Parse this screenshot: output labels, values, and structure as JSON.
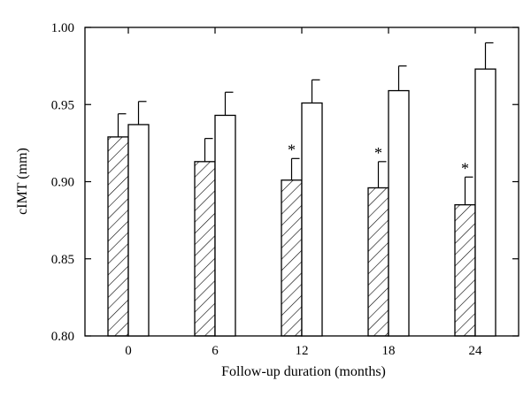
{
  "chart_data": {
    "type": "bar",
    "title": "",
    "xlabel": "Follow-up duration (months)",
    "ylabel": "cIMT (mm)",
    "ylim": [
      0.8,
      1.0
    ],
    "yticks": [
      "0.80",
      "0.85",
      "0.90",
      "0.95",
      "1.00"
    ],
    "categories": [
      "0",
      "6",
      "12",
      "18",
      "24"
    ],
    "series": [
      {
        "pattern": "hatched",
        "values": [
          0.929,
          0.913,
          0.901,
          0.896,
          0.885
        ],
        "errors": [
          0.015,
          0.015,
          0.014,
          0.017,
          0.018
        ],
        "annotations": [
          "",
          "",
          "*",
          "*",
          "*"
        ]
      },
      {
        "pattern": "open",
        "values": [
          0.937,
          0.943,
          0.951,
          0.959,
          0.973
        ],
        "errors": [
          0.015,
          0.015,
          0.015,
          0.016,
          0.017
        ],
        "annotations": [
          "",
          "",
          "",
          "",
          ""
        ]
      }
    ],
    "grid": false,
    "legend": "none",
    "colors": {
      "bar_fill": "#ffffff",
      "stroke": "#000000"
    }
  }
}
